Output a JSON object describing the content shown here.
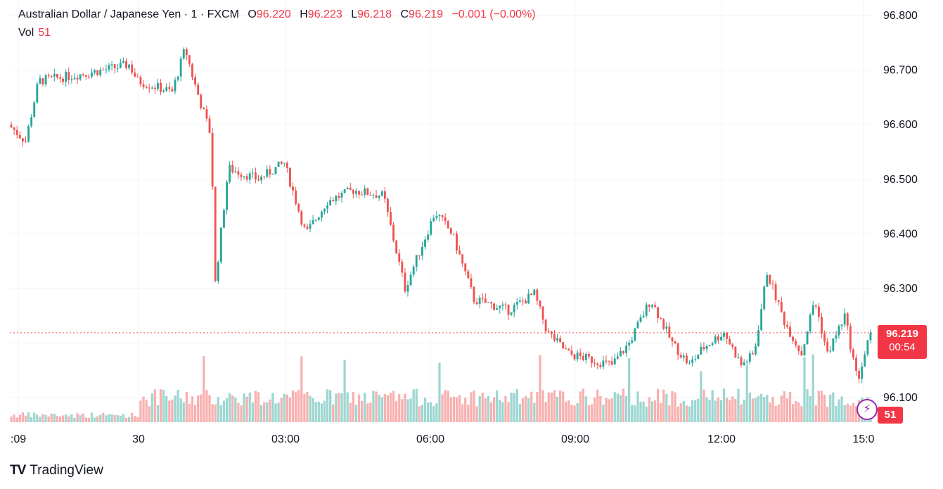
{
  "legend": {
    "symbol": "Australian Dollar / Japanese Yen · 1 · FXCM",
    "open_label": "O",
    "open": "96.220",
    "high_label": "H",
    "high": "96.223",
    "low_label": "L",
    "low": "96.218",
    "close_label": "C",
    "close": "96.219",
    "change": "−0.001 (−0.00%)"
  },
  "volume": {
    "label": "Vol",
    "value": "51"
  },
  "price_tag": {
    "price": "96.219",
    "countdown": "00:54"
  },
  "volume_tag": "51",
  "brand": {
    "logo": "TV",
    "name": "TradingView"
  },
  "colors": {
    "up": "#26a69a",
    "down": "#ef5350",
    "grid": "#f0f3fa",
    "tag": "#f23645"
  },
  "chart_data": {
    "type": "candlestick",
    "y_ticks": [
      "96.100",
      "96.200",
      "96.300",
      "96.400",
      "96.500",
      "96.600",
      "96.700",
      "96.800"
    ],
    "ylim": [
      96.05,
      96.82
    ],
    "x_ticks": [
      ":09",
      "30",
      "03:00",
      "06:00",
      "09:00",
      "12:00",
      "15:0"
    ],
    "current_price": 96.219,
    "close_path": [
      {
        "t": 0,
        "y": 96.6
      },
      {
        "t": 0.02,
        "y": 96.57
      },
      {
        "t": 0.035,
        "y": 96.68
      },
      {
        "t": 0.075,
        "y": 96.69
      },
      {
        "t": 0.11,
        "y": 96.7
      },
      {
        "t": 0.14,
        "y": 96.71
      },
      {
        "t": 0.15,
        "y": 96.68
      },
      {
        "t": 0.19,
        "y": 96.66
      },
      {
        "t": 0.205,
        "y": 96.74
      },
      {
        "t": 0.215,
        "y": 96.68
      },
      {
        "t": 0.235,
        "y": 96.58
      },
      {
        "t": 0.24,
        "y": 96.31
      },
      {
        "t": 0.255,
        "y": 96.52
      },
      {
        "t": 0.29,
        "y": 96.5
      },
      {
        "t": 0.32,
        "y": 96.53
      },
      {
        "t": 0.345,
        "y": 96.4
      },
      {
        "t": 0.37,
        "y": 96.46
      },
      {
        "t": 0.4,
        "y": 96.48
      },
      {
        "t": 0.435,
        "y": 96.47
      },
      {
        "t": 0.46,
        "y": 96.3
      },
      {
        "t": 0.48,
        "y": 96.38
      },
      {
        "t": 0.495,
        "y": 96.44
      },
      {
        "t": 0.515,
        "y": 96.4
      },
      {
        "t": 0.54,
        "y": 96.28
      },
      {
        "t": 0.58,
        "y": 96.26
      },
      {
        "t": 0.61,
        "y": 96.29
      },
      {
        "t": 0.625,
        "y": 96.22
      },
      {
        "t": 0.65,
        "y": 96.18
      },
      {
        "t": 0.675,
        "y": 96.17
      },
      {
        "t": 0.7,
        "y": 96.16
      },
      {
        "t": 0.72,
        "y": 96.2
      },
      {
        "t": 0.745,
        "y": 96.28
      },
      {
        "t": 0.77,
        "y": 96.2
      },
      {
        "t": 0.79,
        "y": 96.16
      },
      {
        "t": 0.805,
        "y": 96.19
      },
      {
        "t": 0.83,
        "y": 96.22
      },
      {
        "t": 0.85,
        "y": 96.16
      },
      {
        "t": 0.865,
        "y": 96.18
      },
      {
        "t": 0.88,
        "y": 96.33
      },
      {
        "t": 0.9,
        "y": 96.24
      },
      {
        "t": 0.92,
        "y": 96.18
      },
      {
        "t": 0.935,
        "y": 96.28
      },
      {
        "t": 0.95,
        "y": 96.18
      },
      {
        "t": 0.97,
        "y": 96.25
      },
      {
        "t": 0.985,
        "y": 96.13
      },
      {
        "t": 1.0,
        "y": 96.219
      }
    ]
  }
}
